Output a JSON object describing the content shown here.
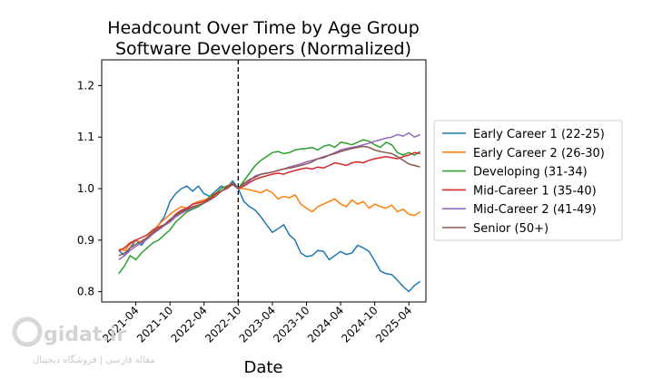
{
  "chart_data": {
    "type": "line",
    "title": [
      "Headcount Over Time by Age Group",
      "Software Developers (Normalized)"
    ],
    "xlabel": "Date",
    "ylabel": "",
    "ylim": [
      0.78,
      1.25
    ],
    "xlim": [
      "2020-10",
      "2025-07"
    ],
    "yticks": [
      "0.8",
      "0.9",
      "1.0",
      "1.1",
      "1.2"
    ],
    "xticks": [
      "2021-04",
      "2021-10",
      "2022-04",
      "2022-10",
      "2023-04",
      "2023-10",
      "2024-04",
      "2024-10",
      "2025-04"
    ],
    "grid": false,
    "legend_position": "outside-right",
    "reference_line": {
      "x": "2022-10",
      "style": "dashed",
      "color": "#000000"
    },
    "x": [
      "2021-01",
      "2021-02",
      "2021-03",
      "2021-04",
      "2021-05",
      "2021-06",
      "2021-07",
      "2021-08",
      "2021-09",
      "2021-10",
      "2021-11",
      "2021-12",
      "2022-01",
      "2022-02",
      "2022-03",
      "2022-04",
      "2022-05",
      "2022-06",
      "2022-07",
      "2022-08",
      "2022-09",
      "2022-10",
      "2022-11",
      "2022-12",
      "2023-01",
      "2023-02",
      "2023-03",
      "2023-04",
      "2023-05",
      "2023-06",
      "2023-07",
      "2023-08",
      "2023-09",
      "2023-10",
      "2023-11",
      "2023-12",
      "2024-01",
      "2024-02",
      "2024-03",
      "2024-04",
      "2024-05",
      "2024-06",
      "2024-07",
      "2024-08",
      "2024-09",
      "2024-10",
      "2024-11",
      "2024-12",
      "2025-01",
      "2025-02",
      "2025-03",
      "2025-04",
      "2025-05",
      "2025-06"
    ],
    "series": [
      {
        "name": "Early Career 1 (22-25)",
        "color": "#1f77b4",
        "values": [
          0.88,
          0.87,
          0.885,
          0.9,
          0.89,
          0.905,
          0.915,
          0.93,
          0.945,
          0.975,
          0.99,
          1.0,
          1.005,
          0.995,
          1.005,
          0.99,
          0.985,
          0.995,
          1.005,
          1.0,
          1.015,
          1.0,
          0.975,
          0.965,
          0.958,
          0.945,
          0.93,
          0.915,
          0.922,
          0.93,
          0.91,
          0.9,
          0.875,
          0.868,
          0.87,
          0.88,
          0.878,
          0.862,
          0.87,
          0.878,
          0.872,
          0.875,
          0.89,
          0.885,
          0.878,
          0.86,
          0.84,
          0.835,
          0.833,
          0.822,
          0.81,
          0.8,
          0.812,
          0.82
        ]
      },
      {
        "name": "Early Career 2 (26-30)",
        "color": "#ff7f0e",
        "values": [
          0.882,
          0.88,
          0.892,
          0.9,
          0.895,
          0.905,
          0.918,
          0.93,
          0.94,
          0.95,
          0.958,
          0.965,
          0.962,
          0.97,
          0.975,
          0.978,
          0.982,
          0.988,
          1.0,
          1.005,
          1.01,
          1.0,
          1.0,
          0.998,
          0.995,
          0.992,
          0.998,
          0.992,
          0.98,
          0.985,
          0.982,
          0.988,
          0.97,
          0.962,
          0.955,
          0.965,
          0.97,
          0.975,
          0.98,
          0.97,
          0.965,
          0.978,
          0.97,
          0.975,
          0.962,
          0.97,
          0.965,
          0.962,
          0.968,
          0.955,
          0.96,
          0.95,
          0.948,
          0.955
        ]
      },
      {
        "name": "Developing (31-34)",
        "color": "#2ca02c",
        "values": [
          0.835,
          0.85,
          0.87,
          0.862,
          0.875,
          0.885,
          0.895,
          0.9,
          0.91,
          0.92,
          0.935,
          0.945,
          0.955,
          0.96,
          0.965,
          0.972,
          0.985,
          0.99,
          1.0,
          1.005,
          1.01,
          1.0,
          1.015,
          1.03,
          1.045,
          1.055,
          1.062,
          1.07,
          1.072,
          1.068,
          1.07,
          1.075,
          1.077,
          1.078,
          1.08,
          1.075,
          1.082,
          1.085,
          1.08,
          1.09,
          1.088,
          1.085,
          1.09,
          1.095,
          1.092,
          1.085,
          1.08,
          1.09,
          1.085,
          1.07,
          1.065,
          1.07,
          1.065,
          1.072
        ]
      },
      {
        "name": "Mid-Career 1 (35-40)",
        "color": "#d62728",
        "values": [
          0.88,
          0.885,
          0.895,
          0.9,
          0.905,
          0.91,
          0.92,
          0.925,
          0.93,
          0.938,
          0.95,
          0.958,
          0.962,
          0.97,
          0.972,
          0.975,
          0.98,
          0.99,
          0.995,
          1.002,
          1.01,
          1.0,
          1.005,
          1.012,
          1.018,
          1.022,
          1.025,
          1.028,
          1.03,
          1.028,
          1.032,
          1.035,
          1.038,
          1.04,
          1.038,
          1.042,
          1.04,
          1.045,
          1.05,
          1.048,
          1.045,
          1.05,
          1.052,
          1.05,
          1.055,
          1.058,
          1.06,
          1.062,
          1.06,
          1.058,
          1.062,
          1.065,
          1.07,
          1.068
        ]
      },
      {
        "name": "Mid-Career 2 (41-49)",
        "color": "#9467bd",
        "values": [
          0.862,
          0.87,
          0.88,
          0.888,
          0.895,
          0.902,
          0.912,
          0.92,
          0.928,
          0.935,
          0.945,
          0.952,
          0.958,
          0.962,
          0.968,
          0.972,
          0.978,
          0.985,
          0.995,
          1.0,
          1.008,
          1.0,
          1.008,
          1.015,
          1.025,
          1.028,
          1.03,
          1.032,
          1.035,
          1.038,
          1.042,
          1.045,
          1.048,
          1.052,
          1.055,
          1.058,
          1.062,
          1.065,
          1.07,
          1.075,
          1.078,
          1.08,
          1.082,
          1.085,
          1.088,
          1.092,
          1.095,
          1.098,
          1.1,
          1.105,
          1.102,
          1.108,
          1.1,
          1.105
        ]
      },
      {
        "name": "Senior (50+)",
        "color": "#8c564b",
        "values": [
          0.87,
          0.875,
          0.885,
          0.892,
          0.898,
          0.905,
          0.915,
          0.922,
          0.93,
          0.94,
          0.948,
          0.955,
          0.96,
          0.965,
          0.968,
          0.972,
          0.978,
          0.985,
          0.995,
          1.0,
          1.008,
          1.0,
          1.01,
          1.018,
          1.022,
          1.028,
          1.03,
          1.032,
          1.035,
          1.038,
          1.04,
          1.042,
          1.045,
          1.048,
          1.052,
          1.058,
          1.06,
          1.065,
          1.068,
          1.072,
          1.075,
          1.078,
          1.08,
          1.082,
          1.08,
          1.075,
          1.072,
          1.07,
          1.068,
          1.062,
          1.055,
          1.048,
          1.045,
          1.042
        ]
      }
    ]
  },
  "watermark": {
    "logo_text": "gidat.ir",
    "tagline": "مقاله فارسی | فروشگاه دیجیتال"
  }
}
